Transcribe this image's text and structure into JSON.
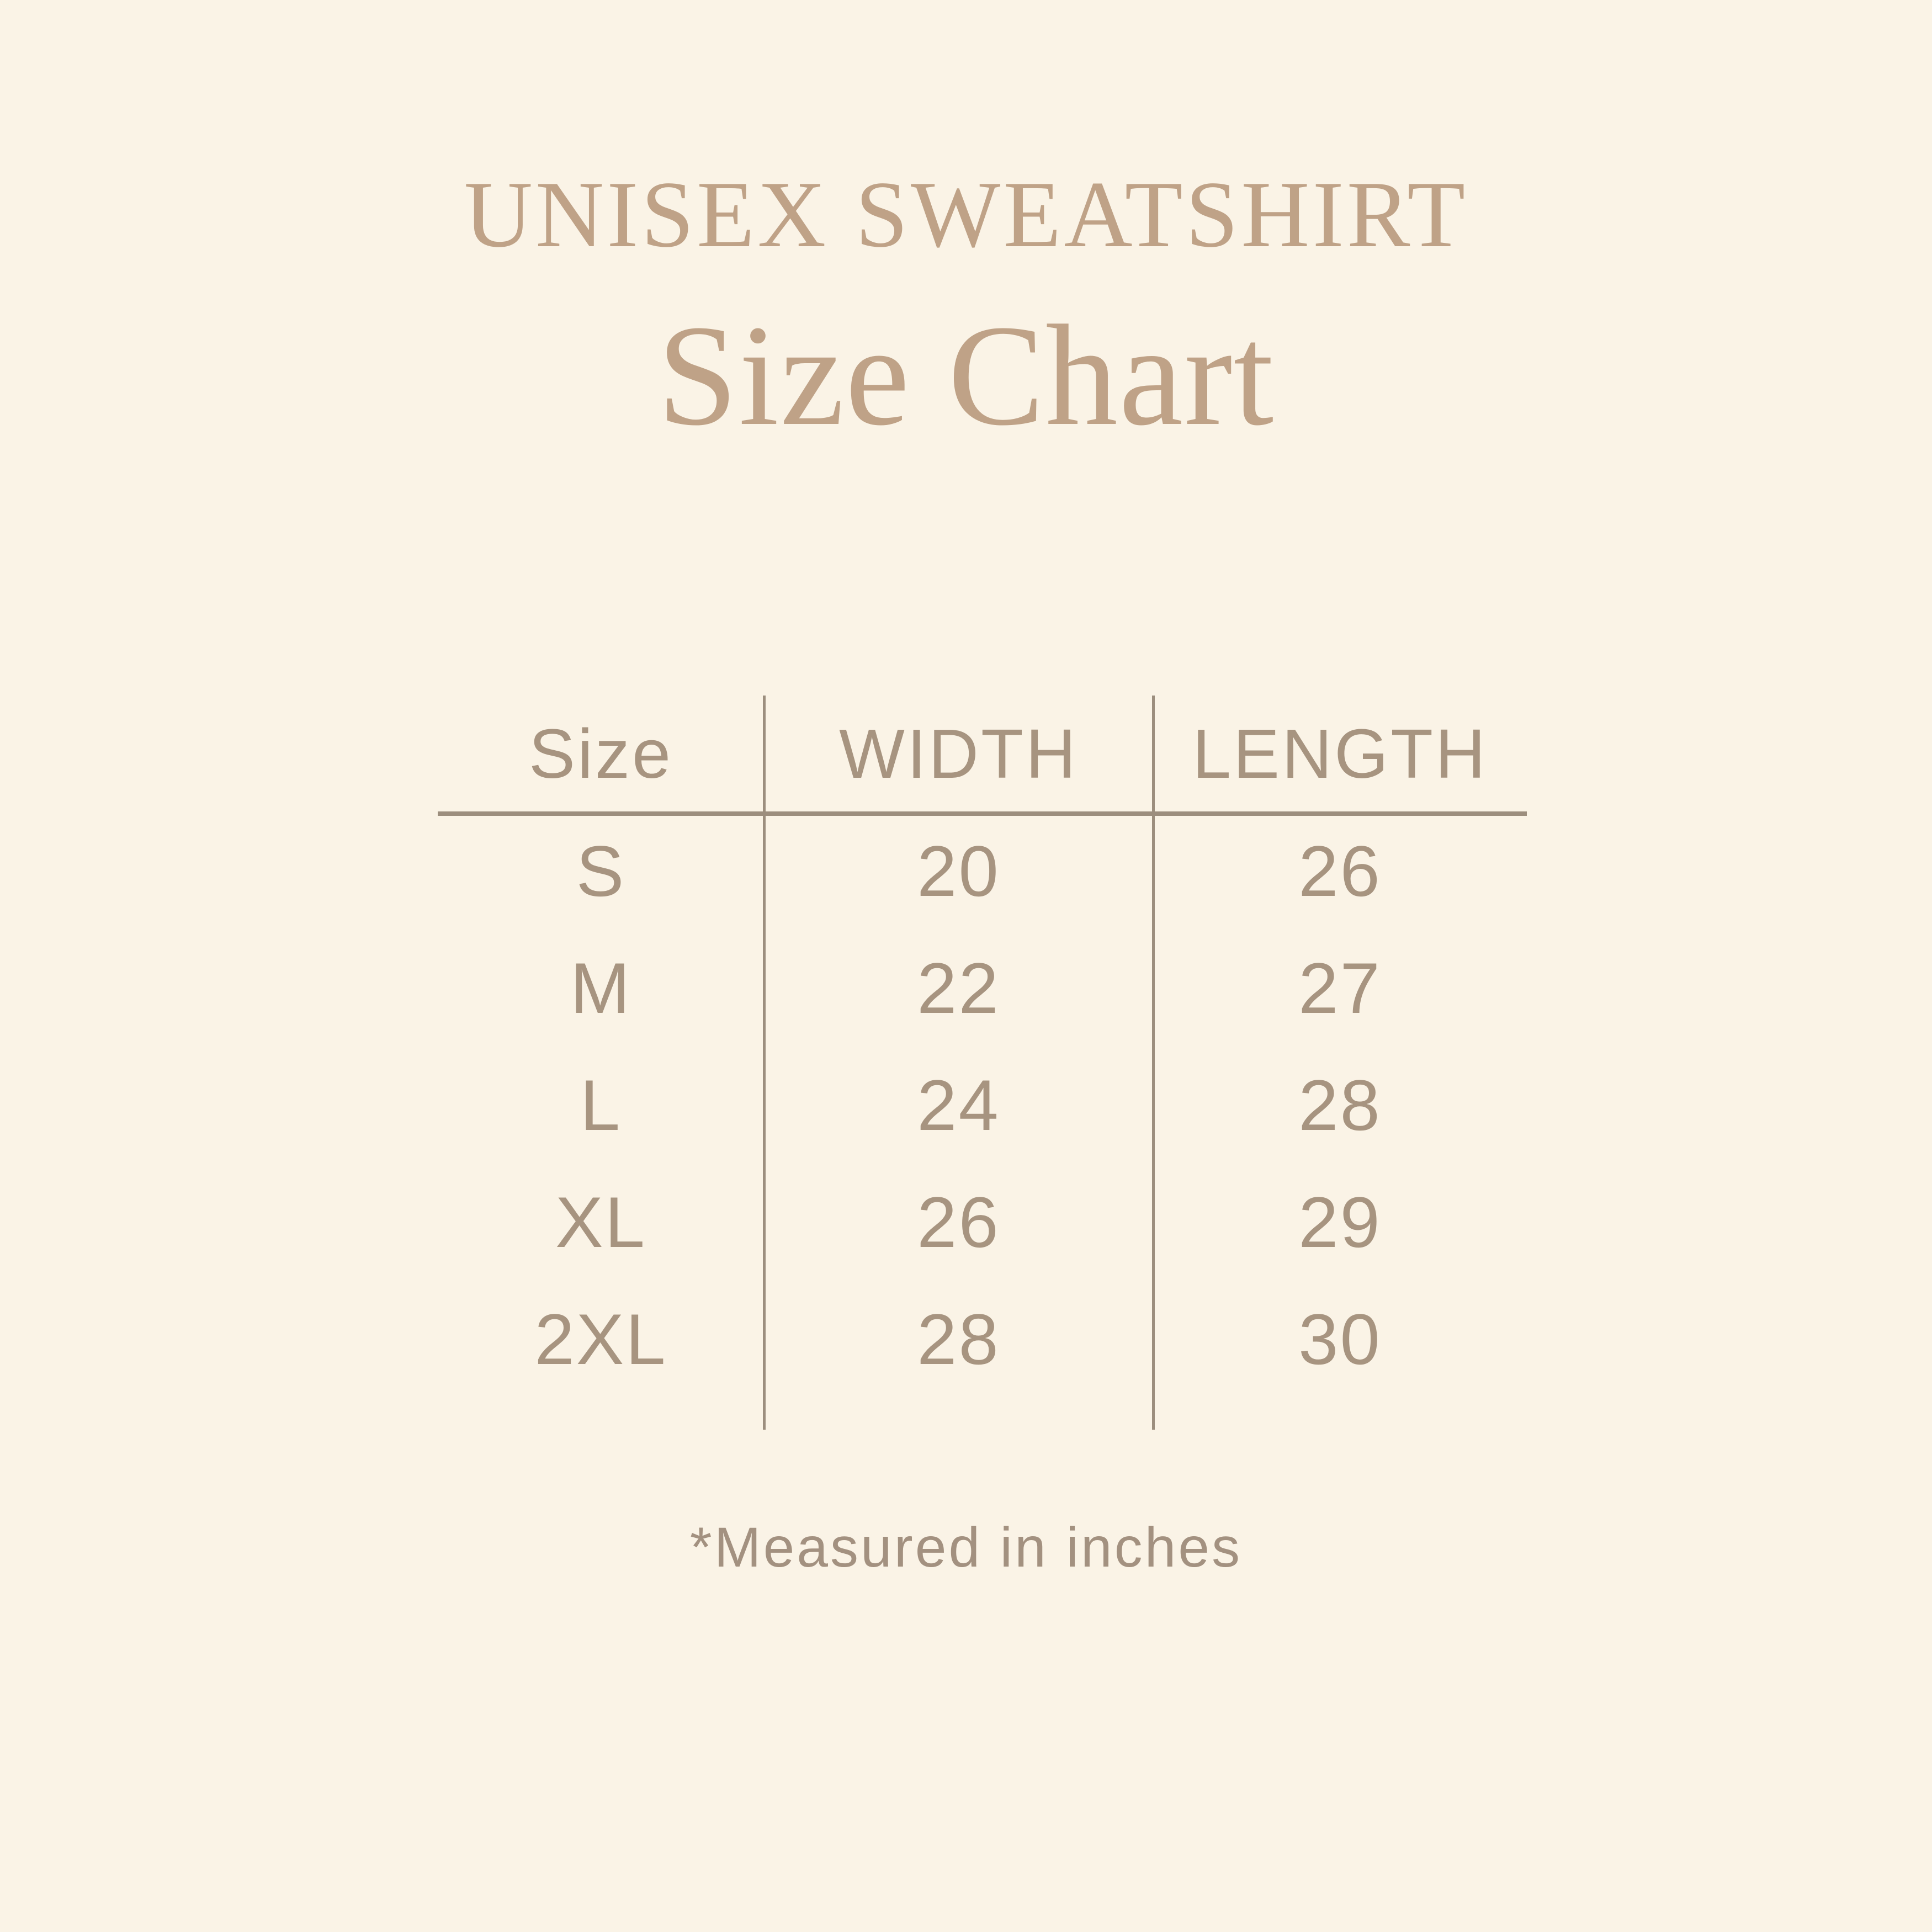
{
  "title": "UNISEX SWEATSHIRT",
  "subtitle": "Size Chart",
  "note": "*Measured in inches",
  "colors": {
    "background": "#faf3e6",
    "heading": "#bfa287",
    "table_text": "#a79480",
    "line": "#9c8e7e"
  },
  "table": {
    "columns": [
      "Size",
      "WIDTH",
      "LENGTH"
    ],
    "rows": [
      [
        "S",
        "20",
        "26"
      ],
      [
        "M",
        "22",
        "27"
      ],
      [
        "L",
        "24",
        "28"
      ],
      [
        "XL",
        "26",
        "29"
      ],
      [
        "2XL",
        "28",
        "30"
      ]
    ]
  },
  "chart_data": {
    "type": "table",
    "title": "Size Chart",
    "subtitle": "UNISEX SWEATSHIRT",
    "columns": [
      "Size",
      "WIDTH",
      "LENGTH"
    ],
    "rows": [
      [
        "S",
        20,
        26
      ],
      [
        "M",
        22,
        27
      ],
      [
        "L",
        24,
        28
      ],
      [
        "XL",
        26,
        29
      ],
      [
        "2XL",
        28,
        30
      ]
    ],
    "units": "inches",
    "note": "*Measured in inches"
  }
}
